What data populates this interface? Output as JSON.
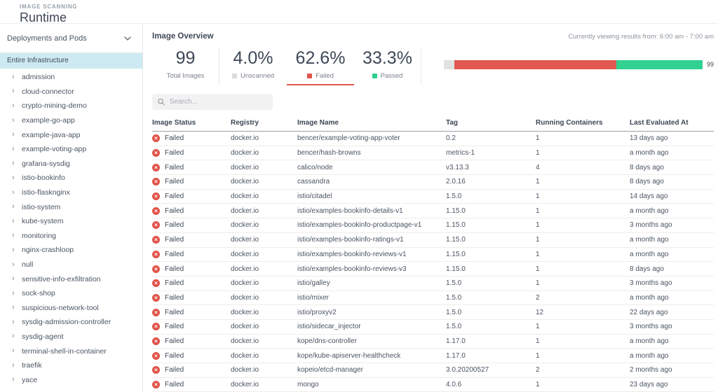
{
  "page": {
    "section_label": "IMAGE SCANNING",
    "title": "Runtime"
  },
  "sidebar": {
    "scope_selector": {
      "label": "Deployments and Pods"
    },
    "selected": "Entire Infrastructure",
    "items": [
      "admission",
      "cloud-connector",
      "crypto-mining-demo",
      "example-go-app",
      "example-java-app",
      "example-voting-app",
      "grafana-sysdig",
      "istio-bookinfo",
      "istio-flasknginx",
      "istio-system",
      "kube-system",
      "monitoring",
      "nginx-crashloop",
      "null",
      "sensitive-info-exfiltration",
      "sock-shop",
      "suspicious-network-tool",
      "sysdig-admission-controller",
      "sysdig-agent",
      "terminal-shell-in-container",
      "traefik",
      "yace"
    ]
  },
  "overview": {
    "title": "Image Overview",
    "time_range_note": "Currently viewing results from: 6:00 am - 7:00 am",
    "stats": [
      {
        "value": "99",
        "label": "Total Images",
        "swatch": null,
        "selected": false
      },
      {
        "value": "4.0%",
        "label": "Unscanned",
        "swatch": "#d9dbdd",
        "selected": false
      },
      {
        "value": "62.6%",
        "label": "Failed",
        "swatch": "#e0544a",
        "selected": true
      },
      {
        "value": "33.3%",
        "label": "Passed",
        "swatch": "#2fd08f",
        "selected": false
      }
    ],
    "bar": {
      "total_label": "99",
      "segments": [
        {
          "name": "unscanned",
          "color": "#e0e2e2",
          "percent": 4.0
        },
        {
          "name": "failed",
          "color": "#e0584e",
          "percent": 62.6
        },
        {
          "name": "passed",
          "color": "#30d191",
          "percent": 33.3
        }
      ]
    }
  },
  "search": {
    "placeholder": "Search..."
  },
  "table": {
    "columns": [
      "Image Status",
      "Registry",
      "Image Name",
      "Tag",
      "Running Containers",
      "Last Evaluated At"
    ],
    "rows": [
      {
        "status": "Failed",
        "registry": "docker.io",
        "image": "bencer/example-voting-app-voter",
        "tag": "0.2",
        "containers": "1",
        "evaluated": "13 days ago"
      },
      {
        "status": "Failed",
        "registry": "docker.io",
        "image": "bencer/hash-browns",
        "tag": "metrics-1",
        "containers": "1",
        "evaluated": "a month ago"
      },
      {
        "status": "Failed",
        "registry": "docker.io",
        "image": "calico/node",
        "tag": "v3.13.3",
        "containers": "4",
        "evaluated": "8 days ago"
      },
      {
        "status": "Failed",
        "registry": "docker.io",
        "image": "cassandra",
        "tag": "2.0.16",
        "containers": "1",
        "evaluated": "8 days ago"
      },
      {
        "status": "Failed",
        "registry": "docker.io",
        "image": "istio/citadel",
        "tag": "1.5.0",
        "containers": "1",
        "evaluated": "14 days ago"
      },
      {
        "status": "Failed",
        "registry": "docker.io",
        "image": "istio/examples-bookinfo-details-v1",
        "tag": "1.15.0",
        "containers": "1",
        "evaluated": "a month ago"
      },
      {
        "status": "Failed",
        "registry": "docker.io",
        "image": "istio/examples-bookinfo-productpage-v1",
        "tag": "1.15.0",
        "containers": "1",
        "evaluated": "3 months ago"
      },
      {
        "status": "Failed",
        "registry": "docker.io",
        "image": "istio/examples-bookinfo-ratings-v1",
        "tag": "1.15.0",
        "containers": "1",
        "evaluated": "a month ago"
      },
      {
        "status": "Failed",
        "registry": "docker.io",
        "image": "istio/examples-bookinfo-reviews-v1",
        "tag": "1.15.0",
        "containers": "1",
        "evaluated": "a month ago"
      },
      {
        "status": "Failed",
        "registry": "docker.io",
        "image": "istio/examples-bookinfo-reviews-v3",
        "tag": "1.15.0",
        "containers": "1",
        "evaluated": "8 days ago"
      },
      {
        "status": "Failed",
        "registry": "docker.io",
        "image": "istio/galley",
        "tag": "1.5.0",
        "containers": "1",
        "evaluated": "3 months ago"
      },
      {
        "status": "Failed",
        "registry": "docker.io",
        "image": "istio/mixer",
        "tag": "1.5.0",
        "containers": "2",
        "evaluated": "a month ago"
      },
      {
        "status": "Failed",
        "registry": "docker.io",
        "image": "istio/proxyv2",
        "tag": "1.5.0",
        "containers": "12",
        "evaluated": "22 days ago"
      },
      {
        "status": "Failed",
        "registry": "docker.io",
        "image": "istio/sidecar_injector",
        "tag": "1.5.0",
        "containers": "1",
        "evaluated": "3 months ago"
      },
      {
        "status": "Failed",
        "registry": "docker.io",
        "image": "kope/dns-controller",
        "tag": "1.17.0",
        "containers": "1",
        "evaluated": "a month ago"
      },
      {
        "status": "Failed",
        "registry": "docker.io",
        "image": "kope/kube-apiserver-healthcheck",
        "tag": "1.17.0",
        "containers": "1",
        "evaluated": "a month ago"
      },
      {
        "status": "Failed",
        "registry": "docker.io",
        "image": "kopeio/etcd-manager",
        "tag": "3.0.20200527",
        "containers": "2",
        "evaluated": "2 months ago"
      },
      {
        "status": "Failed",
        "registry": "docker.io",
        "image": "mongo",
        "tag": "4.0.6",
        "containers": "1",
        "evaluated": "23 days ago"
      }
    ]
  }
}
